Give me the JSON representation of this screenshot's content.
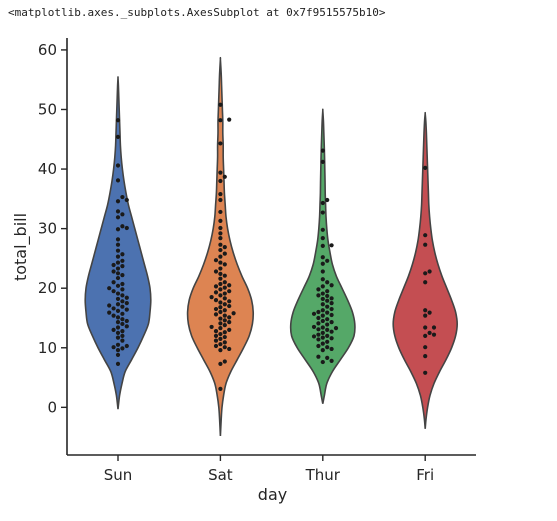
{
  "repr_text": "<matplotlib.axes._subplots.AxesSubplot at 0x7f9515575b10>",
  "colors": {
    "violins": [
      "#4c72b0",
      "#dd8452",
      "#55a868",
      "#c44e52"
    ],
    "violin_edge": "#444444",
    "points": "#1a1a1a",
    "axis": "#262626"
  },
  "chart_data": {
    "type": "violin+swarm",
    "xlabel": "day",
    "ylabel": "total_bill",
    "categories": [
      "Sun",
      "Sat",
      "Thur",
      "Fri"
    ],
    "ylim": [
      -8,
      62
    ],
    "yticks": [
      0,
      10,
      20,
      30,
      40,
      50,
      60
    ],
    "violins": [
      {
        "category": "Sun",
        "y_min": -0.3,
        "y_max": 55.3,
        "width_profile": [
          [
            -0.3,
            0.0
          ],
          [
            2,
            0.02
          ],
          [
            4,
            0.05
          ],
          [
            6,
            0.09
          ],
          [
            8,
            0.17
          ],
          [
            10,
            0.25
          ],
          [
            12,
            0.32
          ],
          [
            14,
            0.38
          ],
          [
            16,
            0.4
          ],
          [
            18,
            0.41
          ],
          [
            20,
            0.4
          ],
          [
            22,
            0.37
          ],
          [
            24,
            0.33
          ],
          [
            26,
            0.29
          ],
          [
            28,
            0.25
          ],
          [
            30,
            0.21
          ],
          [
            32,
            0.17
          ],
          [
            34,
            0.13
          ],
          [
            36,
            0.1
          ],
          [
            38,
            0.075
          ],
          [
            40,
            0.055
          ],
          [
            42,
            0.04
          ],
          [
            44,
            0.03
          ],
          [
            46,
            0.025
          ],
          [
            48,
            0.02
          ],
          [
            50,
            0.015
          ],
          [
            52,
            0.01
          ],
          [
            54,
            0.005
          ],
          [
            55.3,
            0.0
          ]
        ]
      },
      {
        "category": "Sat",
        "y_min": -4.8,
        "y_max": 58.4,
        "width_profile": [
          [
            -4.8,
            0.0
          ],
          [
            -2,
            0.01
          ],
          [
            0,
            0.02
          ],
          [
            2,
            0.04
          ],
          [
            4,
            0.07
          ],
          [
            6,
            0.13
          ],
          [
            8,
            0.21
          ],
          [
            10,
            0.29
          ],
          [
            12,
            0.36
          ],
          [
            14,
            0.4
          ],
          [
            16,
            0.41
          ],
          [
            18,
            0.39
          ],
          [
            20,
            0.34
          ],
          [
            22,
            0.27
          ],
          [
            24,
            0.21
          ],
          [
            26,
            0.16
          ],
          [
            28,
            0.12
          ],
          [
            30,
            0.09
          ],
          [
            32,
            0.07
          ],
          [
            34,
            0.06
          ],
          [
            36,
            0.05
          ],
          [
            38,
            0.045
          ],
          [
            40,
            0.04
          ],
          [
            42,
            0.035
          ],
          [
            44,
            0.035
          ],
          [
            46,
            0.03
          ],
          [
            48,
            0.03
          ],
          [
            50,
            0.025
          ],
          [
            52,
            0.02
          ],
          [
            54,
            0.015
          ],
          [
            56,
            0.01
          ],
          [
            58.4,
            0.0
          ]
        ]
      },
      {
        "category": "Thur",
        "y_min": 0.6,
        "y_max": 49.8,
        "width_profile": [
          [
            0.6,
            0.0
          ],
          [
            2,
            0.02
          ],
          [
            4,
            0.05
          ],
          [
            6,
            0.12
          ],
          [
            8,
            0.22
          ],
          [
            10,
            0.32
          ],
          [
            12,
            0.39
          ],
          [
            14,
            0.4
          ],
          [
            16,
            0.37
          ],
          [
            18,
            0.31
          ],
          [
            20,
            0.24
          ],
          [
            22,
            0.17
          ],
          [
            24,
            0.12
          ],
          [
            26,
            0.09
          ],
          [
            28,
            0.065
          ],
          [
            30,
            0.05
          ],
          [
            32,
            0.04
          ],
          [
            34,
            0.035
          ],
          [
            36,
            0.03
          ],
          [
            38,
            0.028
          ],
          [
            40,
            0.025
          ],
          [
            42,
            0.022
          ],
          [
            44,
            0.018
          ],
          [
            46,
            0.013
          ],
          [
            48,
            0.008
          ],
          [
            49.8,
            0.0
          ]
        ]
      },
      {
        "category": "Fri",
        "y_min": -3.6,
        "y_max": 49.3,
        "width_profile": [
          [
            -3.6,
            0.0
          ],
          [
            -2,
            0.01
          ],
          [
            0,
            0.03
          ],
          [
            2,
            0.06
          ],
          [
            4,
            0.11
          ],
          [
            6,
            0.18
          ],
          [
            8,
            0.26
          ],
          [
            10,
            0.33
          ],
          [
            12,
            0.38
          ],
          [
            14,
            0.4
          ],
          [
            16,
            0.38
          ],
          [
            18,
            0.33
          ],
          [
            20,
            0.27
          ],
          [
            22,
            0.21
          ],
          [
            24,
            0.16
          ],
          [
            26,
            0.12
          ],
          [
            28,
            0.09
          ],
          [
            30,
            0.07
          ],
          [
            32,
            0.055
          ],
          [
            34,
            0.045
          ],
          [
            36,
            0.04
          ],
          [
            38,
            0.035
          ],
          [
            40,
            0.03
          ],
          [
            42,
            0.025
          ],
          [
            44,
            0.02
          ],
          [
            46,
            0.015
          ],
          [
            48,
            0.008
          ],
          [
            49.3,
            0.0
          ]
        ]
      }
    ],
    "points": [
      {
        "category": "Sun",
        "values": [
          48.2,
          45.4,
          40.6,
          38.1,
          35.3,
          34.8,
          34.6,
          32.9,
          32.4,
          31.9,
          30.4,
          30.1,
          29.9,
          28.2,
          27.3,
          26.3,
          25.7,
          25.3,
          24.6,
          24.3,
          23.9,
          23.7,
          23.3,
          22.8,
          22.5,
          22.2,
          21.7,
          21.0,
          20.7,
          20.4,
          20.0,
          19.8,
          19.5,
          19.1,
          18.8,
          18.4,
          18.2,
          17.8,
          17.5,
          17.3,
          17.1,
          16.9,
          16.6,
          16.4,
          16.2,
          15.9,
          15.7,
          15.4,
          15.1,
          14.8,
          14.5,
          14.3,
          14.0,
          13.6,
          13.4,
          13.0,
          12.8,
          12.5,
          12.0,
          11.7,
          11.2,
          10.5,
          10.3,
          10.1,
          9.9,
          9.6,
          8.8,
          7.3
        ]
      },
      {
        "category": "Sat",
        "values": [
          50.8,
          48.3,
          48.2,
          44.3,
          39.4,
          38.7,
          38.0,
          35.8,
          34.8,
          32.8,
          31.3,
          30.1,
          29.2,
          28.4,
          27.3,
          26.9,
          26.4,
          25.8,
          25.3,
          24.7,
          24.3,
          24.0,
          23.3,
          22.8,
          22.4,
          22.1,
          21.6,
          21.0,
          20.7,
          20.5,
          20.3,
          20.1,
          19.8,
          19.5,
          19.3,
          19.1,
          18.8,
          18.5,
          18.3,
          18.0,
          17.8,
          17.6,
          17.3,
          17.0,
          16.8,
          16.5,
          16.3,
          16.0,
          15.8,
          15.6,
          15.4,
          15.1,
          14.9,
          14.6,
          14.3,
          14.1,
          13.8,
          13.5,
          13.3,
          13.0,
          12.8,
          12.6,
          12.3,
          12.0,
          11.8,
          11.5,
          11.2,
          10.9,
          10.6,
          10.3,
          10.1,
          9.8,
          9.6,
          7.7,
          7.3,
          3.1
        ]
      },
      {
        "category": "Thur",
        "values": [
          43.1,
          41.2,
          34.8,
          34.3,
          32.7,
          29.8,
          28.4,
          27.2,
          27.1,
          25.2,
          24.6,
          24.1,
          22.8,
          21.5,
          21.0,
          20.5,
          20.3,
          19.8,
          19.5,
          19.1,
          18.8,
          18.7,
          18.3,
          18.2,
          17.9,
          17.5,
          17.3,
          16.9,
          16.5,
          16.3,
          16.0,
          15.9,
          15.7,
          15.5,
          15.4,
          15.0,
          14.8,
          14.5,
          14.3,
          14.1,
          13.9,
          13.5,
          13.4,
          13.3,
          13.1,
          13.0,
          12.7,
          12.5,
          12.2,
          12.0,
          11.9,
          11.7,
          11.6,
          11.4,
          11.0,
          10.7,
          10.3,
          10.1,
          9.8,
          9.6,
          8.5,
          8.3,
          7.8,
          7.6
        ]
      },
      {
        "category": "Fri",
        "values": [
          40.2,
          28.9,
          27.3,
          22.8,
          22.5,
          21.0,
          16.3,
          15.9,
          15.4,
          13.4,
          13.4,
          12.5,
          12.2,
          12.0,
          10.1,
          8.6,
          5.8
        ]
      }
    ]
  }
}
